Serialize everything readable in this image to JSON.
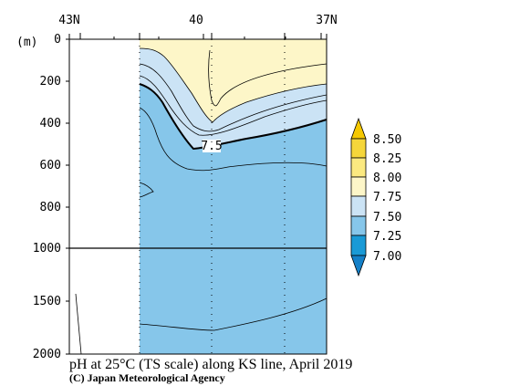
{
  "chart_data": {
    "type": "heatmap",
    "title": "pH at 25°C (TS scale) along KS line, April 2019",
    "credit": "(C) Japan Meteorological Agency",
    "y_unit_label": "(m)",
    "x_ticks_top": [
      "43N",
      "40",
      "37N"
    ],
    "y_ticks": [
      "0",
      "200",
      "400",
      "600",
      "800",
      "1000",
      "1500",
      "2000"
    ],
    "y_axis": {
      "upper_range_m": [
        0,
        1000
      ],
      "lower_range_m": [
        1000,
        2000
      ],
      "scale": "broken (upper part expanded)"
    },
    "contour_label": "7.5",
    "colorbar": {
      "labels": [
        "8.50",
        "8.25",
        "8.00",
        "7.75",
        "7.50",
        "7.25",
        "7.00"
      ],
      "levels": [
        8.5,
        8.25,
        8.0,
        7.75,
        7.5,
        7.25,
        7.0
      ],
      "colors": [
        "#f5d63a",
        "#fbe980",
        "#fdf6c8",
        "#cbe3f5",
        "#86c6ea",
        "#1a9ad6"
      ],
      "over_color": "#f5c800",
      "under_color": "#1480c8"
    },
    "colors": {
      "bg_deep": "#86c6ea",
      "band_750_775": "#cbe3f5",
      "band_775_800": "#fdf6c8"
    }
  }
}
